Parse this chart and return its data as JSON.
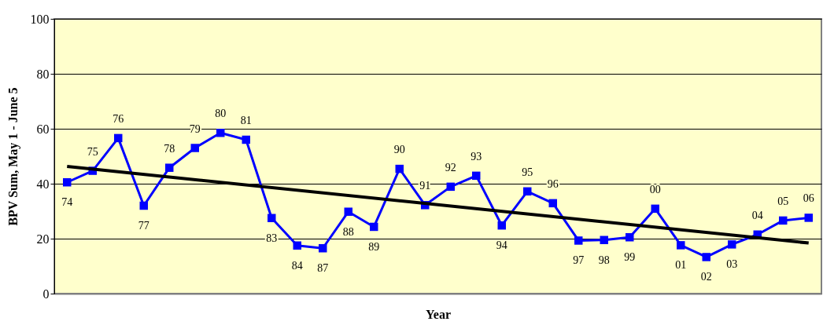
{
  "chart_data": {
    "type": "line",
    "xlabel": "Year",
    "ylabel": "BPV Sum, May 1 - June 5",
    "categories": [
      "74",
      "75",
      "76",
      "77",
      "78",
      "79",
      "80",
      "81",
      "83",
      "84",
      "87",
      "88",
      "89",
      "90",
      "91",
      "92",
      "93",
      "94",
      "95",
      "96",
      "97",
      "98",
      "99",
      "00",
      "01",
      "02",
      "03",
      "04",
      "05",
      "06"
    ],
    "ylim": [
      0,
      100
    ],
    "yticks": [
      0,
      20,
      40,
      60,
      80,
      100
    ],
    "grid": "y",
    "tick_labels": "y",
    "series": [
      {
        "color": "#0000ff",
        "marker": "square",
        "line_style": "solid",
        "values": [
          40.5,
          44.7,
          56.6,
          32.0,
          45.8,
          53.0,
          58.5,
          56.0,
          27.5,
          17.5,
          16.5,
          29.8,
          24.3,
          45.4,
          32.2,
          38.9,
          42.9,
          24.8,
          37.2,
          32.9,
          19.3,
          19.5,
          20.5,
          30.9,
          17.6,
          13.3,
          17.9,
          21.5,
          26.6,
          27.6
        ]
      },
      {
        "type": "line",
        "color": "#000000",
        "marker": "none",
        "line_style": "solid",
        "values": [
          46.3,
          null,
          null,
          null,
          null,
          null,
          null,
          null,
          null,
          null,
          null,
          null,
          null,
          null,
          null,
          null,
          null,
          null,
          null,
          null,
          null,
          null,
          null,
          null,
          null,
          null,
          null,
          null,
          null,
          18.4
        ]
      }
    ]
  }
}
